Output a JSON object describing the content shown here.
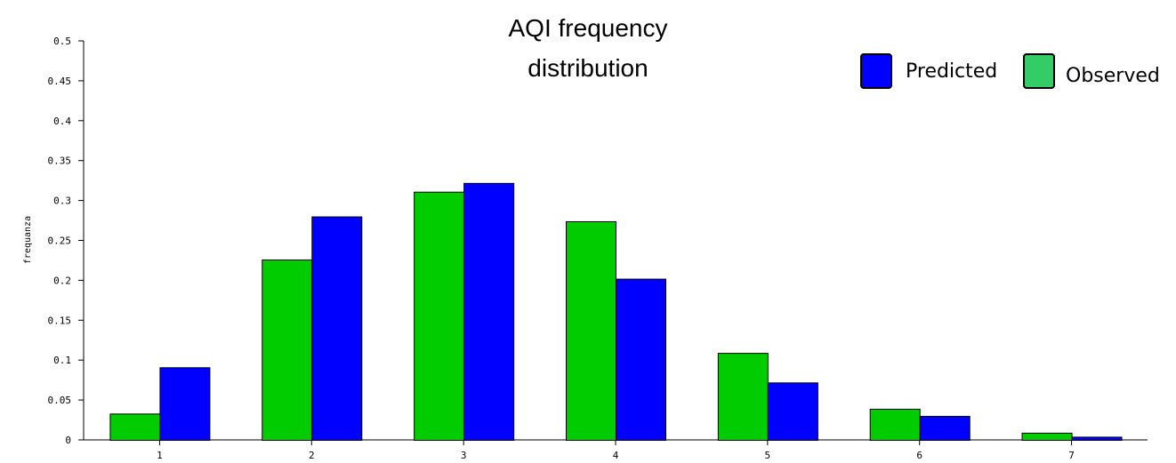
{
  "chart_data": {
    "type": "bar",
    "title_lines": [
      "AQI frequency",
      "distribution"
    ],
    "ylabel": "frequanza",
    "xlabel": "",
    "categories": [
      "1",
      "2",
      "3",
      "4",
      "5",
      "6",
      "7"
    ],
    "ylim": [
      0,
      0.5
    ],
    "yticks": [
      {
        "value": 0,
        "label": "0"
      },
      {
        "value": 0.05,
        "label": "0.05"
      },
      {
        "value": 0.1,
        "label": "0.1"
      },
      {
        "value": 0.15,
        "label": "0.15"
      },
      {
        "value": 0.2,
        "label": "0.2"
      },
      {
        "value": 0.25,
        "label": "0.25"
      },
      {
        "value": 0.3,
        "label": "0.3"
      },
      {
        "value": 0.35,
        "label": "0.35"
      },
      {
        "value": 0.4,
        "label": "0.4"
      },
      {
        "value": 0.45,
        "label": "0.45"
      },
      {
        "value": 0.5,
        "label": "0.5"
      }
    ],
    "series": [
      {
        "name": "Observed",
        "color": "#00cc00",
        "values": [
          0.033,
          0.226,
          0.311,
          0.274,
          0.109,
          0.039,
          0.009
        ]
      },
      {
        "name": "Predicted",
        "color": "#0000ff",
        "values": [
          0.091,
          0.28,
          0.322,
          0.202,
          0.072,
          0.03,
          0.004
        ]
      }
    ],
    "legend": {
      "placement": "top-right",
      "entries": [
        {
          "label": "Predicted",
          "color": "#0000ff"
        },
        {
          "label": "Observed",
          "color": "#33cc66"
        }
      ]
    },
    "grid": false
  }
}
